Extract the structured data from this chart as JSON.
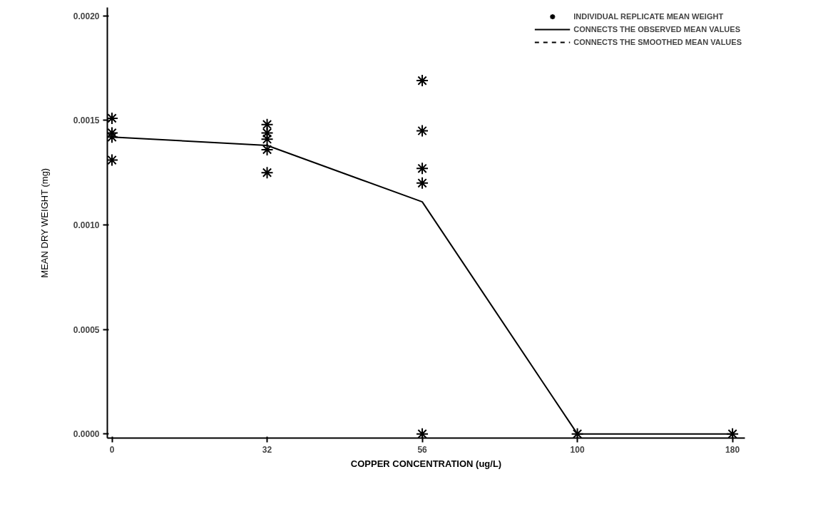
{
  "chart_data": {
    "type": "line",
    "xlabel": "COPPER CONCENTRATION (ug/L)",
    "ylabel": "MEAN DRY WEIGHT (mg)",
    "categories": [
      "0",
      "32",
      "56",
      "100",
      "180"
    ],
    "ylim": [
      -2e-05,
      0.00204
    ],
    "yticks": [
      {
        "value": 0,
        "label": "0.0000"
      },
      {
        "value": 0.0005,
        "label": "0.0005"
      },
      {
        "value": 0.001,
        "label": "0.0010"
      },
      {
        "value": 0.0015,
        "label": "0.0015"
      },
      {
        "value": 0.002,
        "label": "0.0020"
      }
    ],
    "grid": false,
    "legend": "top right",
    "series": [
      {
        "name": "INDIVIDUAL REPLICATE MEAN WEIGHT",
        "type": "scatter",
        "marker": "cross",
        "color": "#000000",
        "x": [
          "0",
          "0",
          "0",
          "0",
          "32",
          "32",
          "32",
          "32",
          "32",
          "56",
          "56",
          "56",
          "56",
          "56",
          "100",
          "180"
        ],
        "values": [
          0.00151,
          0.00144,
          0.00142,
          0.00131,
          0.00148,
          0.00144,
          0.00141,
          0.00136,
          0.00125,
          0.00169,
          0.00145,
          0.00127,
          0.0012,
          0,
          0,
          0
        ]
      },
      {
        "name": "CONNECTS THE OBSERVED MEAN VALUES",
        "line_style": "solid",
        "color": "#000000",
        "values": [
          0.00142,
          0.00138,
          0.00111,
          0,
          0
        ]
      },
      {
        "name": "CONNECTS THE SMOOTHED MEAN VALUES",
        "line_style": "dashed",
        "color": "#000000",
        "values": [
          null,
          null,
          null,
          null,
          null
        ]
      }
    ]
  }
}
